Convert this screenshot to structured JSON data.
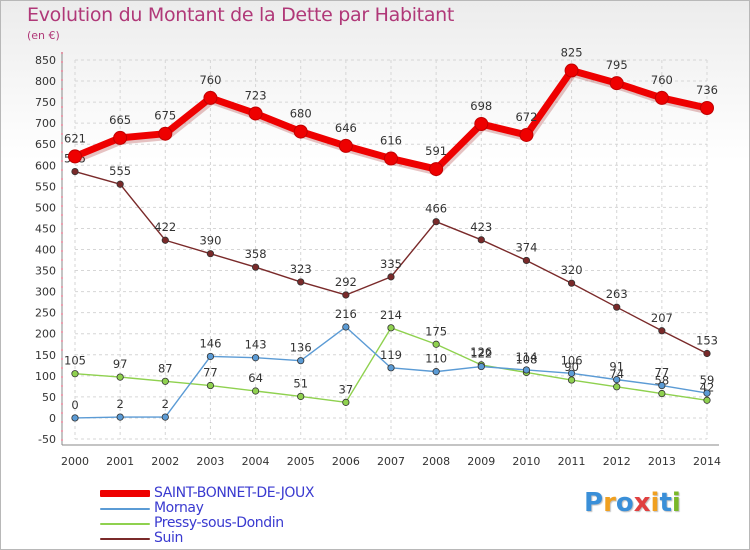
{
  "header": {
    "title": "Evolution du Montant de la Dette par Habitant",
    "subtitle": "(en €)"
  },
  "brand": {
    "letters": [
      "P",
      "r",
      "o",
      "x",
      "i",
      "t",
      "i"
    ],
    "colors": [
      "#3a8fd8",
      "#f0a020",
      "#3a8fd8",
      "#e04040",
      "#f0a020",
      "#3a8fd8",
      "#7ab828"
    ]
  },
  "chart_data": {
    "type": "line",
    "x": [
      "2000",
      "2001",
      "2002",
      "2003",
      "2004",
      "2005",
      "2006",
      "2007",
      "2008",
      "2009",
      "2010",
      "2011",
      "2012",
      "2013",
      "2014"
    ],
    "ylim": [
      -50,
      850
    ],
    "yticks": [
      "-50",
      "0",
      "50",
      "100",
      "150",
      "200",
      "250",
      "300",
      "350",
      "400",
      "450",
      "500",
      "550",
      "600",
      "650",
      "700",
      "750",
      "800",
      "850"
    ],
    "grid": true,
    "legend_position": "bottom-left",
    "series": [
      {
        "name": "SAINT-BONNET-DE-JOUX",
        "color": "#ee0000",
        "values": [
          621,
          665,
          675,
          760,
          723,
          680,
          646,
          616,
          591,
          698,
          672,
          825,
          795,
          760,
          736
        ],
        "labels": [
          "621",
          "665",
          "675",
          "760",
          "723",
          "680",
          "646",
          "616",
          "591",
          "698",
          "672",
          "825",
          "795",
          "760",
          "736"
        ]
      },
      {
        "name": "Mornay",
        "color": "#5b9bd5",
        "values": [
          0,
          2,
          2,
          146,
          143,
          136,
          216,
          119,
          110,
          122,
          114,
          106,
          91,
          77,
          59
        ],
        "labels": [
          "0",
          "2",
          "2",
          "146",
          "143",
          "136",
          "216",
          "119",
          "110",
          "122",
          "114",
          "106",
          "91",
          "77",
          "59"
        ]
      },
      {
        "name": "Pressy-sous-Dondin",
        "color": "#8fd14f",
        "values": [
          105,
          97,
          87,
          77,
          64,
          51,
          37,
          214,
          175,
          126,
          108,
          90,
          74,
          58,
          42
        ],
        "labels": [
          "105",
          "97",
          "87",
          "77",
          "64",
          "51",
          "37",
          "214",
          "175",
          "126",
          "108",
          "90",
          "74",
          "58",
          "42"
        ]
      },
      {
        "name": "Suin",
        "color": "#7a2a2a",
        "values": [
          585,
          555,
          422,
          390,
          358,
          323,
          292,
          335,
          466,
          423,
          374,
          320,
          263,
          207,
          153
        ],
        "labels": [
          "585",
          "555",
          "422",
          "390",
          "358",
          "323",
          "292",
          "335",
          "466",
          "423",
          "374",
          "320",
          "263",
          "207",
          "153"
        ]
      }
    ]
  }
}
